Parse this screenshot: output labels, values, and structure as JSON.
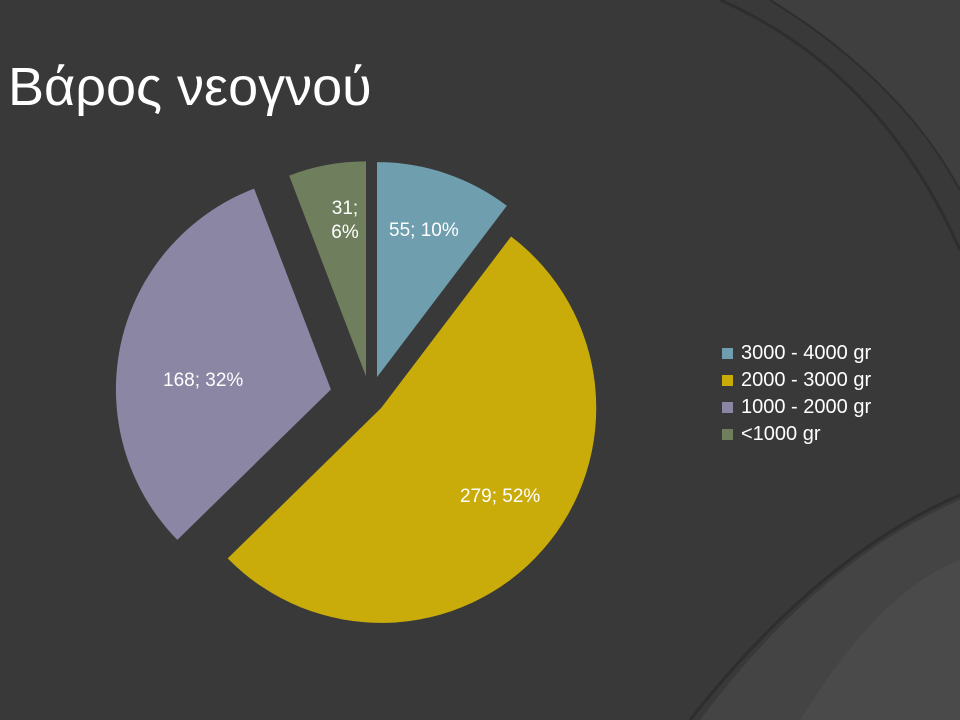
{
  "title": "Βάρος νεογνού",
  "chart_data": {
    "type": "pie",
    "title": "Βάρος νεογνού",
    "legend_position": "right",
    "slices": [
      {
        "label": "3000 - 4000 gr",
        "value": 55,
        "percent": 10,
        "data_label": "55; 10%",
        "color": "#6f9fae"
      },
      {
        "label": "2000 - 3000 gr",
        "value": 279,
        "percent": 52,
        "data_label": "279; 52%",
        "color": "#c9ac0a"
      },
      {
        "label": "1000 - 2000 gr",
        "value": 168,
        "percent": 32,
        "data_label": "168; 32%",
        "color": "#8b86a3"
      },
      {
        "label": "<1000 gr",
        "value": 31,
        "percent": 6,
        "data_label": "31; 6%",
        "color": "#6f7f5d"
      }
    ]
  }
}
